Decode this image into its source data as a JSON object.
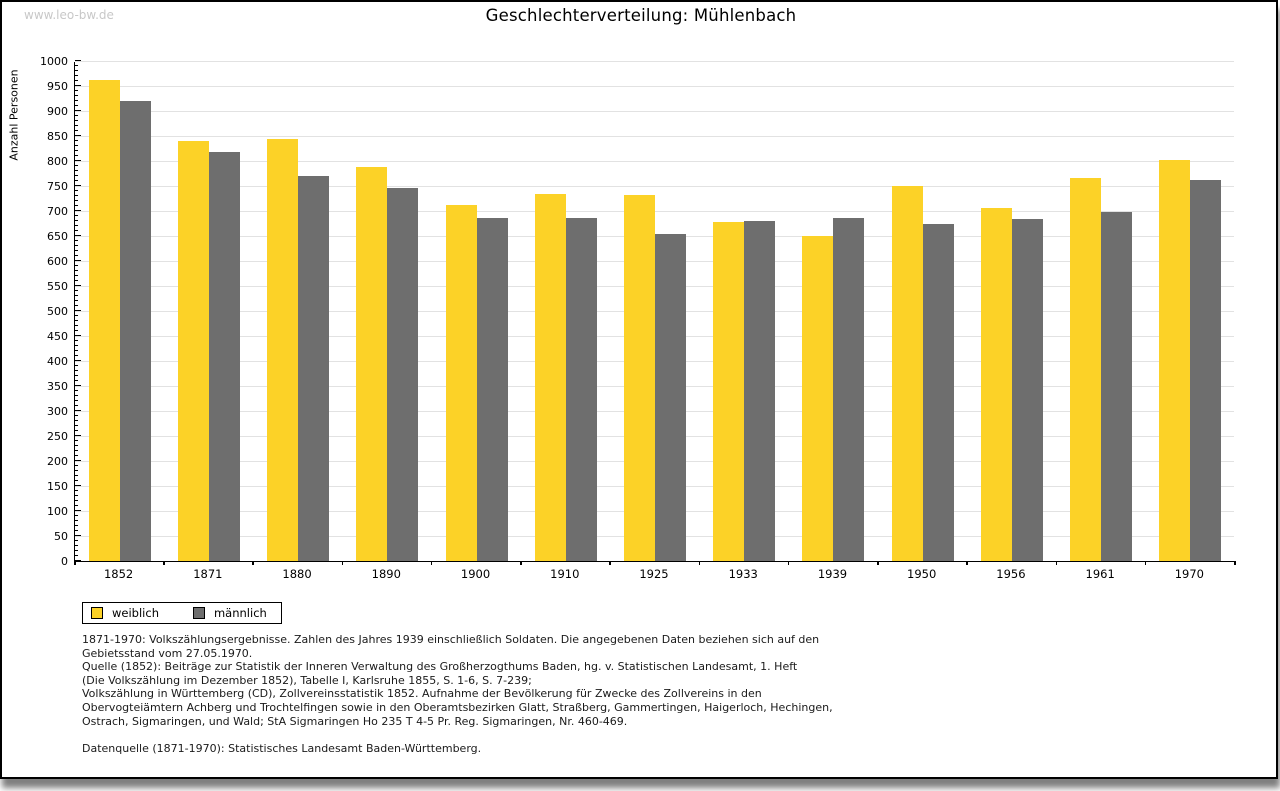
{
  "watermark": "www.leo-bw.de",
  "title": "Geschlechterverteilung: Mühlenbach",
  "chart_data": {
    "type": "bar",
    "title": "Geschlechterverteilung: Mühlenbach",
    "xlabel": "",
    "ylabel": "Anzahl Personen",
    "ylim": [
      0,
      1000
    ],
    "ytick_step": 50,
    "ytick_minor_step": 10,
    "grid": true,
    "legend_position": "bottom-left",
    "categories": [
      "1852",
      "1871",
      "1880",
      "1890",
      "1900",
      "1910",
      "1925",
      "1933",
      "1939",
      "1950",
      "1956",
      "1961",
      "1970"
    ],
    "series": [
      {
        "name": "weiblich",
        "color": "#fcd227",
        "values": [
          962,
          841,
          845,
          788,
          713,
          735,
          732,
          678,
          651,
          750,
          707,
          767,
          802
        ]
      },
      {
        "name": "männlich",
        "color": "#6e6e6e",
        "values": [
          920,
          819,
          770,
          746,
          686,
          687,
          654,
          681,
          687,
          675,
          685,
          698,
          763
        ]
      }
    ]
  },
  "legend": {
    "items": [
      {
        "label": "weiblich",
        "color": "#fcd227"
      },
      {
        "label": "männlich",
        "color": "#6e6e6e"
      }
    ]
  },
  "footnotes": {
    "lines": [
      "1871-1970: Volkszählungsergebnisse. Zahlen des Jahres 1939 einschließlich Soldaten. Die angegebenen Daten beziehen sich auf den",
      "Gebietsstand vom 27.05.1970.",
      "Quelle (1852): Beiträge zur Statistik der Inneren Verwaltung des Großherzogthums Baden, hg. v. Statistischen Landesamt, 1. Heft",
      "(Die Volkszählung im Dezember 1852), Tabelle I, Karlsruhe 1855, S. 1-6, S. 7-239;",
      "Volkszählung in Württemberg (CD), Zollvereinsstatistik 1852. Aufnahme der Bevölkerung für Zwecke des Zollvereins in den",
      "Obervogteiämtern Achberg und Trochtelfingen sowie in den Oberamtsbezirken Glatt, Straßberg, Gammertingen, Haigerloch, Hechingen,",
      "Ostrach, Sigmaringen, und Wald; StA Sigmaringen Ho 235 T 4-5 Pr. Reg. Sigmaringen, Nr. 460-469."
    ],
    "datasource": "Datenquelle (1871-1970): Statistisches Landesamt Baden-Württemberg."
  },
  "colors": {
    "grid": "#e2e2e2",
    "axis": "#000000",
    "watermark": "#c8c8c8",
    "background": "#ffffff"
  }
}
